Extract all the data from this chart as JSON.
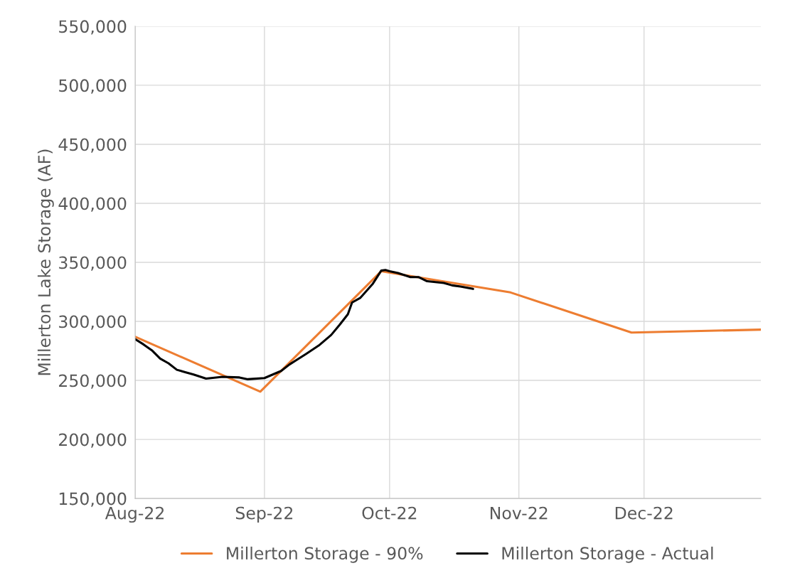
{
  "chart_data": {
    "type": "line",
    "ylabel": "Millerton Lake Storage (AF)",
    "xlim": [
      "2022-08-01",
      "2022-12-29"
    ],
    "xticks": [
      {
        "value": "2022-08-01",
        "label": "Aug-22"
      },
      {
        "value": "2022-09-01",
        "label": "Sep-22"
      },
      {
        "value": "2022-10-01",
        "label": "Oct-22"
      },
      {
        "value": "2022-11-01",
        "label": "Nov-22"
      },
      {
        "value": "2022-12-01",
        "label": "Dec-22"
      }
    ],
    "ylim": [
      150000,
      550000
    ],
    "yticks": [
      {
        "value": 150000,
        "label": "150,000"
      },
      {
        "value": 200000,
        "label": "200,000"
      },
      {
        "value": 250000,
        "label": "250,000"
      },
      {
        "value": 300000,
        "label": "300,000"
      },
      {
        "value": 350000,
        "label": "350,000"
      },
      {
        "value": 400000,
        "label": "400,000"
      },
      {
        "value": 450000,
        "label": "450,000"
      },
      {
        "value": 500000,
        "label": "500,000"
      },
      {
        "value": 550000,
        "label": "550,000"
      }
    ],
    "grid": true,
    "legend": "bottom",
    "series": [
      {
        "name": "Millerton Storage - 90%",
        "color": "#ed7d31",
        "x": [
          "2022-08-01",
          "2022-08-31",
          "2022-09-29",
          "2022-10-30",
          "2022-11-28",
          "2022-12-29"
        ],
        "values": [
          287000,
          240500,
          342500,
          324500,
          290500,
          293000
        ]
      },
      {
        "name": "Millerton Storage - Actual",
        "color": "#000000",
        "x": [
          "2022-08-01",
          "2022-08-03",
          "2022-08-05",
          "2022-08-07",
          "2022-08-09",
          "2022-08-11",
          "2022-08-13",
          "2022-08-15",
          "2022-08-18",
          "2022-08-22",
          "2022-08-26",
          "2022-08-28",
          "2022-09-01",
          "2022-09-03",
          "2022-09-05",
          "2022-09-07",
          "2022-09-11",
          "2022-09-14",
          "2022-09-17",
          "2022-09-19",
          "2022-09-21",
          "2022-09-22",
          "2022-09-24",
          "2022-09-27",
          "2022-09-29",
          "2022-09-30",
          "2022-10-01",
          "2022-10-03",
          "2022-10-06",
          "2022-10-08",
          "2022-10-10",
          "2022-10-14",
          "2022-10-16",
          "2022-10-18",
          "2022-10-21"
        ],
        "values": [
          285000,
          280500,
          275500,
          268500,
          264500,
          259000,
          257000,
          255000,
          251500,
          253000,
          252500,
          251000,
          252000,
          255000,
          258000,
          263500,
          272500,
          279500,
          288500,
          297000,
          306000,
          316000,
          320000,
          332000,
          343000,
          343500,
          342500,
          341000,
          337500,
          337500,
          334000,
          332500,
          330500,
          329500,
          327500
        ]
      }
    ]
  }
}
